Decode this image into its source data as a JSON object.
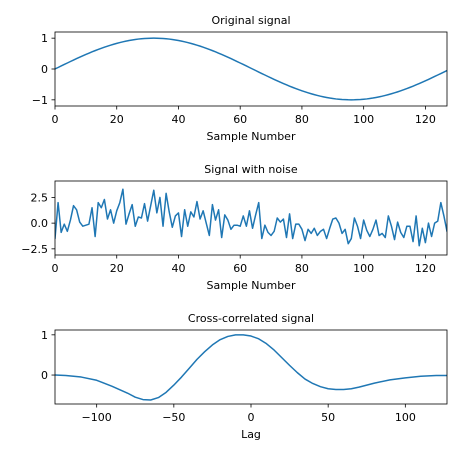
{
  "chart_data": [
    {
      "type": "line",
      "title": "Original signal",
      "xlabel": "Sample Number",
      "ylabel": "",
      "xlim": [
        0,
        127
      ],
      "ylim": [
        -1.2,
        1.2
      ],
      "xticks": [
        0,
        20,
        40,
        60,
        80,
        100,
        120
      ],
      "yticks": [
        -1,
        0,
        1
      ],
      "color": "#1f77b4",
      "series": [
        {
          "values": [
            0,
            0.049,
            0.098,
            0.147,
            0.195,
            0.243,
            0.29,
            0.337,
            0.383,
            0.428,
            0.471,
            0.514,
            0.556,
            0.596,
            0.634,
            0.672,
            0.707,
            0.741,
            0.773,
            0.803,
            0.831,
            0.857,
            0.882,
            0.904,
            0.924,
            0.942,
            0.957,
            0.971,
            0.981,
            0.99,
            0.995,
            0.999,
            1.0,
            0.999,
            0.995,
            0.99,
            0.981,
            0.971,
            0.957,
            0.942,
            0.924,
            0.904,
            0.882,
            0.857,
            0.831,
            0.803,
            0.773,
            0.741,
            0.707,
            0.672,
            0.634,
            0.596,
            0.556,
            0.514,
            0.471,
            0.428,
            0.383,
            0.337,
            0.29,
            0.243,
            0.195,
            0.147,
            0.098,
            0.049,
            0,
            -0.049,
            -0.098,
            -0.147,
            -0.195,
            -0.243,
            -0.29,
            -0.337,
            -0.383,
            -0.428,
            -0.471,
            -0.514,
            -0.556,
            -0.596,
            -0.634,
            -0.672,
            -0.707,
            -0.741,
            -0.773,
            -0.803,
            -0.831,
            -0.857,
            -0.882,
            -0.904,
            -0.924,
            -0.942,
            -0.957,
            -0.971,
            -0.981,
            -0.99,
            -0.995,
            -0.999,
            -1.0,
            -0.999,
            -0.995,
            -0.99,
            -0.981,
            -0.971,
            -0.957,
            -0.942,
            -0.924,
            -0.904,
            -0.882,
            -0.857,
            -0.831,
            -0.803,
            -0.773,
            -0.741,
            -0.707,
            -0.672,
            -0.634,
            -0.596,
            -0.556,
            -0.514,
            -0.471,
            -0.428,
            -0.383,
            -0.337,
            -0.29,
            -0.243,
            -0.195,
            -0.147,
            -0.098,
            -0.049
          ]
        }
      ]
    },
    {
      "type": "line",
      "title": "Signal with noise",
      "xlabel": "Sample Number",
      "ylabel": "",
      "xlim": [
        0,
        127
      ],
      "ylim": [
        -3.1,
        4.1
      ],
      "xticks": [
        0,
        20,
        40,
        60,
        80,
        100,
        120
      ],
      "yticks": [
        -2.5,
        0.0,
        2.5
      ],
      "color": "#1f77b4",
      "series": [
        {
          "values": [
            -1.5,
            2.0,
            -0.9,
            -0.1,
            -0.8,
            0.3,
            1.7,
            1.3,
            0.1,
            -0.3,
            -0.2,
            -0.1,
            1.5,
            -1.3,
            2.0,
            1.5,
            2.3,
            0.4,
            1.3,
            0.0,
            1.2,
            2.0,
            3.3,
            -0.1,
            0.9,
            1.8,
            -0.3,
            0.6,
            0.5,
            1.9,
            0.2,
            1.7,
            3.2,
            1.0,
            2.5,
            -0.3,
            2.9,
            1.1,
            -0.4,
            0.7,
            1.0,
            -1.3,
            1.3,
            -0.3,
            1.1,
            0.6,
            2.1,
            0.4,
            1.2,
            0.0,
            -1.2,
            1.8,
            0.3,
            1.3,
            -1.4,
            0.8,
            0.3,
            -0.6,
            -0.2,
            -0.2,
            -0.3,
            0.7,
            -0.3,
            1.2,
            -0.5,
            0.8,
            2.0,
            -1.5,
            -0.2,
            -0.9,
            -1.2,
            -0.8,
            0.5,
            0.1,
            0.4,
            -1.4,
            0.9,
            -1.5,
            -0.1,
            -0.1,
            -0.6,
            -1.7,
            -0.6,
            -1.0,
            -0.5,
            -1.2,
            -0.8,
            -0.6,
            -1.5,
            -0.5,
            0.4,
            0.5,
            0.0,
            -1.0,
            -0.6,
            -2.0,
            -1.5,
            0.5,
            -0.3,
            -1.5,
            0.3,
            -0.7,
            -1.3,
            -0.6,
            0.3,
            -1.2,
            -1.0,
            -1.4,
            0.7,
            -0.3,
            -1.6,
            0.1,
            -0.9,
            -1.4,
            -0.3,
            -0.3,
            -1.8,
            0.7,
            -2.2,
            -0.5,
            -1.9,
            0.0,
            -1.3,
            0.0,
            0.2,
            2.0,
            0.7,
            -0.8
          ]
        }
      ]
    },
    {
      "type": "line",
      "title": "Cross-correlated signal",
      "xlabel": "Lag",
      "ylabel": "",
      "xlim": [
        -127,
        127
      ],
      "ylim": [
        -0.72,
        1.12
      ],
      "xticks": [
        -100,
        -50,
        0,
        50,
        100
      ],
      "yticks": [
        0,
        1
      ],
      "color": "#1f77b4",
      "series": [
        {
          "x": [
            -127,
            -120,
            -110,
            -100,
            -90,
            -80,
            -75,
            -70,
            -65,
            -60,
            -55,
            -50,
            -45,
            -40,
            -35,
            -30,
            -25,
            -20,
            -15,
            -10,
            -5,
            0,
            5,
            10,
            15,
            20,
            25,
            30,
            35,
            40,
            45,
            50,
            55,
            60,
            65,
            70,
            80,
            90,
            100,
            110,
            120,
            127
          ],
          "values": [
            0.0,
            -0.01,
            -0.05,
            -0.13,
            -0.28,
            -0.45,
            -0.55,
            -0.61,
            -0.62,
            -0.56,
            -0.43,
            -0.25,
            -0.05,
            0.17,
            0.39,
            0.58,
            0.75,
            0.88,
            0.96,
            1.0,
            1.0,
            0.97,
            0.9,
            0.78,
            0.62,
            0.43,
            0.24,
            0.06,
            -0.1,
            -0.21,
            -0.29,
            -0.34,
            -0.36,
            -0.36,
            -0.34,
            -0.3,
            -0.2,
            -0.12,
            -0.07,
            -0.03,
            -0.01,
            -0.01
          ]
        }
      ]
    }
  ]
}
